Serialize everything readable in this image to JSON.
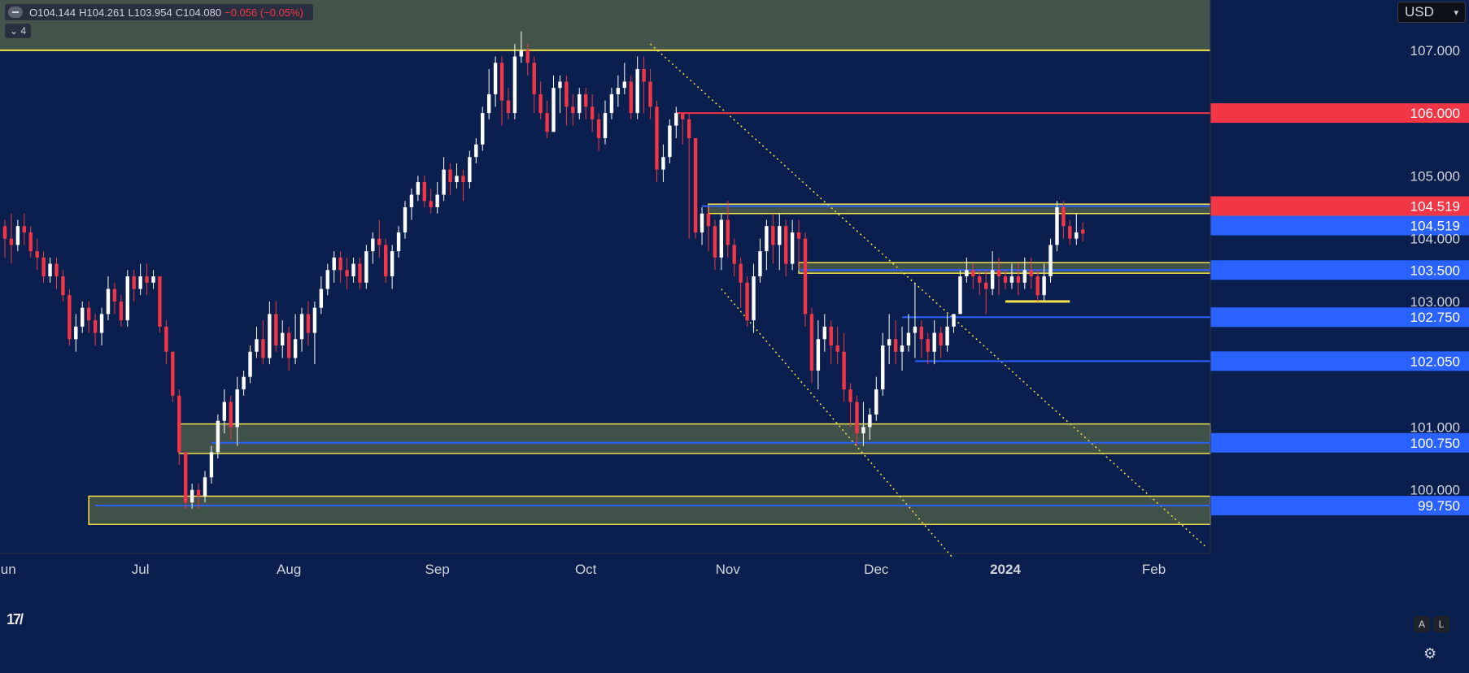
{
  "header": {
    "ohlc": {
      "o": "O104.144",
      "h": "H104.261",
      "l": "L103.954",
      "c": "C104.080",
      "change": "−0.056 (−0.05%)"
    },
    "indicators_label": "4",
    "currency": "USD"
  },
  "icons": {
    "collapse": "minus-circle-icon",
    "logo": "tradingview-logo",
    "settings": "gear-icon"
  },
  "axis_buttons": {
    "auto": "A",
    "log": "L"
  },
  "chart_data": {
    "type": "candlestick",
    "title": "",
    "xlabel": "",
    "ylabel": "",
    "ylim": [
      99.0,
      107.8
    ],
    "y_ticks": [
      {
        "value": 107.0,
        "label": "107.000"
      },
      {
        "value": 105.0,
        "label": "105.000"
      },
      {
        "value": 104.0,
        "label": "104.000"
      },
      {
        "value": 103.0,
        "label": "103.000"
      },
      {
        "value": 101.0,
        "label": "101.000"
      },
      {
        "value": 100.0,
        "label": "100.000"
      }
    ],
    "x_ticks": [
      "Jun",
      "Jul",
      "Aug",
      "Sep",
      "Oct",
      "Nov",
      "Dec",
      "2024",
      "Feb"
    ],
    "x_tick_index": [
      0,
      21,
      44,
      67,
      90,
      112,
      135,
      155,
      178
    ],
    "start_index": 0,
    "end_index": 186,
    "candles": [
      [
        0,
        104.2,
        104.0,
        104.3,
        103.7
      ],
      [
        1,
        104.0,
        103.9,
        104.4,
        103.6
      ],
      [
        2,
        103.9,
        104.2,
        104.3,
        103.8
      ],
      [
        3,
        104.2,
        104.1,
        104.4,
        103.9
      ],
      [
        4,
        104.1,
        103.8,
        104.2,
        103.7
      ],
      [
        5,
        103.8,
        103.7,
        104.0,
        103.5
      ],
      [
        6,
        103.7,
        103.4,
        103.8,
        103.3
      ],
      [
        7,
        103.4,
        103.6,
        103.7,
        103.3
      ],
      [
        8,
        103.6,
        103.4,
        103.7,
        103.2
      ],
      [
        9,
        103.4,
        103.1,
        103.5,
        103.0
      ],
      [
        10,
        103.1,
        102.4,
        103.2,
        102.3
      ],
      [
        11,
        102.4,
        102.6,
        102.8,
        102.2
      ],
      [
        12,
        102.6,
        102.9,
        103.0,
        102.5
      ],
      [
        13,
        102.9,
        102.7,
        103.0,
        102.5
      ],
      [
        14,
        102.7,
        102.5,
        102.8,
        102.3
      ],
      [
        15,
        102.5,
        102.8,
        102.9,
        102.3
      ],
      [
        16,
        102.8,
        103.2,
        103.4,
        102.7
      ],
      [
        17,
        103.2,
        103.0,
        103.3,
        102.8
      ],
      [
        18,
        103.0,
        102.7,
        103.1,
        102.6
      ],
      [
        19,
        102.7,
        103.4,
        103.5,
        102.6
      ],
      [
        20,
        103.4,
        103.2,
        103.5,
        103.0
      ],
      [
        21,
        103.2,
        103.4,
        103.6,
        103.1
      ],
      [
        22,
        103.4,
        103.3,
        103.6,
        103.1
      ],
      [
        23,
        103.3,
        103.4,
        103.5,
        103.2
      ],
      [
        24,
        103.4,
        102.6,
        103.4,
        102.5
      ],
      [
        25,
        102.6,
        102.2,
        102.7,
        102.0
      ],
      [
        26,
        102.2,
        101.5,
        102.2,
        101.4
      ],
      [
        27,
        101.5,
        100.6,
        101.6,
        100.4
      ],
      [
        28,
        100.6,
        99.8,
        100.6,
        99.7
      ],
      [
        29,
        99.8,
        100.0,
        100.1,
        99.7
      ],
      [
        30,
        100.0,
        99.9,
        100.1,
        99.7
      ],
      [
        31,
        99.9,
        100.2,
        100.3,
        99.8
      ],
      [
        32,
        100.2,
        100.6,
        100.7,
        100.1
      ],
      [
        33,
        100.6,
        101.1,
        101.2,
        100.5
      ],
      [
        34,
        101.1,
        101.4,
        101.6,
        100.9
      ],
      [
        35,
        101.4,
        101.0,
        101.5,
        100.8
      ],
      [
        36,
        101.0,
        101.6,
        101.8,
        100.7
      ],
      [
        37,
        101.6,
        101.8,
        101.9,
        101.5
      ],
      [
        38,
        101.8,
        102.2,
        102.3,
        101.7
      ],
      [
        39,
        102.2,
        102.4,
        102.6,
        102.1
      ],
      [
        40,
        102.4,
        102.1,
        102.7,
        102.0
      ],
      [
        41,
        102.1,
        102.8,
        103.0,
        102.0
      ],
      [
        42,
        102.8,
        102.3,
        103.0,
        102.2
      ],
      [
        43,
        102.3,
        102.5,
        102.7,
        102.1
      ],
      [
        44,
        102.5,
        102.1,
        102.6,
        101.9
      ],
      [
        45,
        102.1,
        102.4,
        102.8,
        102.0
      ],
      [
        46,
        102.4,
        102.8,
        102.9,
        102.2
      ],
      [
        47,
        102.8,
        102.5,
        103.0,
        102.3
      ],
      [
        48,
        102.5,
        102.9,
        103.0,
        102.0
      ],
      [
        49,
        102.9,
        103.2,
        103.4,
        102.8
      ],
      [
        50,
        103.2,
        103.5,
        103.6,
        103.1
      ],
      [
        51,
        103.5,
        103.7,
        103.8,
        103.3
      ],
      [
        52,
        103.7,
        103.5,
        103.8,
        103.3
      ],
      [
        53,
        103.5,
        103.4,
        103.7,
        103.2
      ],
      [
        54,
        103.4,
        103.6,
        103.7,
        103.3
      ],
      [
        55,
        103.6,
        103.3,
        103.7,
        103.2
      ],
      [
        56,
        103.3,
        103.8,
        103.9,
        103.2
      ],
      [
        57,
        103.8,
        104.0,
        104.1,
        103.6
      ],
      [
        58,
        104.0,
        103.9,
        104.3,
        103.7
      ],
      [
        59,
        103.9,
        103.4,
        104.0,
        103.3
      ],
      [
        60,
        103.4,
        103.8,
        103.9,
        103.2
      ],
      [
        61,
        103.8,
        104.1,
        104.2,
        103.7
      ],
      [
        62,
        104.1,
        104.5,
        104.6,
        104.0
      ],
      [
        63,
        104.5,
        104.7,
        104.8,
        104.3
      ],
      [
        64,
        104.7,
        104.9,
        105.0,
        104.6
      ],
      [
        65,
        104.9,
        104.6,
        105.0,
        104.5
      ],
      [
        66,
        104.6,
        104.5,
        104.8,
        104.4
      ],
      [
        67,
        104.5,
        104.7,
        104.9,
        104.4
      ],
      [
        68,
        104.7,
        105.1,
        105.3,
        104.6
      ],
      [
        69,
        105.1,
        104.9,
        105.2,
        104.7
      ],
      [
        70,
        104.9,
        105.0,
        105.2,
        104.8
      ],
      [
        71,
        105.0,
        104.9,
        105.1,
        104.6
      ],
      [
        72,
        104.9,
        105.3,
        105.4,
        104.8
      ],
      [
        73,
        105.3,
        105.5,
        105.6,
        105.2
      ],
      [
        74,
        105.5,
        106.0,
        106.1,
        105.4
      ],
      [
        75,
        106.0,
        106.3,
        106.7,
        105.9
      ],
      [
        76,
        106.3,
        106.8,
        106.9,
        106.1
      ],
      [
        77,
        106.8,
        106.2,
        106.9,
        105.8
      ],
      [
        78,
        106.2,
        106.0,
        106.4,
        105.9
      ],
      [
        79,
        106.0,
        106.9,
        107.1,
        105.9
      ],
      [
        80,
        106.9,
        107.0,
        107.3,
        106.8
      ],
      [
        81,
        107.0,
        106.8,
        107.1,
        106.6
      ],
      [
        82,
        106.8,
        106.3,
        106.9,
        106.0
      ],
      [
        83,
        106.3,
        106.0,
        106.5,
        105.9
      ],
      [
        84,
        106.0,
        105.7,
        106.2,
        105.6
      ],
      [
        85,
        105.7,
        106.4,
        106.6,
        105.7
      ],
      [
        86,
        106.4,
        106.5,
        106.6,
        106.0
      ],
      [
        87,
        106.5,
        106.1,
        106.6,
        105.8
      ],
      [
        88,
        106.1,
        106.0,
        106.3,
        105.8
      ],
      [
        89,
        106.0,
        106.3,
        106.4,
        105.9
      ],
      [
        90,
        106.3,
        106.1,
        106.4,
        105.9
      ],
      [
        91,
        106.1,
        105.9,
        106.3,
        105.7
      ],
      [
        92,
        105.9,
        105.6,
        106.0,
        105.4
      ],
      [
        93,
        105.6,
        106.0,
        106.2,
        105.5
      ],
      [
        94,
        106.0,
        106.3,
        106.4,
        105.9
      ],
      [
        95,
        106.3,
        106.4,
        106.6,
        106.1
      ],
      [
        96,
        106.4,
        106.5,
        106.8,
        106.3
      ],
      [
        97,
        106.5,
        106.0,
        106.6,
        105.9
      ],
      [
        98,
        106.0,
        106.7,
        106.9,
        105.9
      ],
      [
        99,
        106.7,
        106.5,
        106.9,
        106.0
      ],
      [
        100,
        106.5,
        106.1,
        106.7,
        105.9
      ],
      [
        101,
        106.1,
        105.1,
        106.2,
        104.9
      ],
      [
        102,
        105.1,
        105.3,
        105.5,
        104.9
      ],
      [
        103,
        105.3,
        105.8,
        105.9,
        105.2
      ],
      [
        104,
        105.8,
        106.0,
        106.1,
        105.6
      ],
      [
        105,
        106.0,
        105.9,
        106.0,
        105.5
      ],
      [
        106,
        105.9,
        105.6,
        106.0,
        104.0
      ],
      [
        107,
        105.6,
        104.1,
        105.6,
        104.0
      ],
      [
        108,
        104.1,
        104.4,
        104.5,
        103.9
      ],
      [
        109,
        104.4,
        104.2,
        104.5,
        103.8
      ],
      [
        110,
        104.2,
        103.7,
        104.3,
        103.5
      ],
      [
        111,
        103.7,
        104.3,
        104.4,
        103.5
      ],
      [
        112,
        104.3,
        103.9,
        104.6,
        103.7
      ],
      [
        113,
        103.9,
        103.6,
        104.0,
        103.4
      ],
      [
        114,
        103.6,
        103.3,
        103.7,
        102.9
      ],
      [
        115,
        103.3,
        102.7,
        103.4,
        102.6
      ],
      [
        116,
        102.7,
        103.4,
        103.6,
        102.5
      ],
      [
        117,
        103.4,
        103.8,
        104.0,
        103.3
      ],
      [
        118,
        103.8,
        104.2,
        104.3,
        103.5
      ],
      [
        119,
        104.2,
        103.9,
        104.4,
        103.6
      ],
      [
        120,
        103.9,
        104.2,
        104.4,
        103.5
      ],
      [
        121,
        104.2,
        103.6,
        104.3,
        103.4
      ],
      [
        122,
        103.6,
        104.1,
        104.3,
        103.5
      ],
      [
        123,
        104.1,
        104.0,
        104.3,
        103.5
      ],
      [
        124,
        104.0,
        102.8,
        104.1,
        102.6
      ],
      [
        125,
        102.8,
        101.9,
        102.9,
        101.7
      ],
      [
        126,
        101.9,
        102.4,
        102.7,
        101.6
      ],
      [
        127,
        102.4,
        102.6,
        102.8,
        102.2
      ],
      [
        128,
        102.6,
        102.3,
        102.7,
        102.0
      ],
      [
        129,
        102.3,
        102.2,
        102.6,
        102.0
      ],
      [
        130,
        102.2,
        101.6,
        102.5,
        101.4
      ],
      [
        131,
        101.6,
        101.4,
        101.7,
        101.0
      ],
      [
        132,
        101.4,
        100.9,
        101.5,
        100.7
      ],
      [
        133,
        100.9,
        101.0,
        101.4,
        100.7
      ],
      [
        134,
        101.0,
        101.2,
        101.3,
        100.8
      ],
      [
        135,
        101.2,
        101.6,
        101.8,
        101.1
      ],
      [
        136,
        101.6,
        102.3,
        102.5,
        101.5
      ],
      [
        137,
        102.3,
        102.4,
        102.8,
        102.0
      ],
      [
        138,
        102.4,
        102.2,
        102.7,
        102.0
      ],
      [
        139,
        102.2,
        102.3,
        102.6,
        101.9
      ],
      [
        140,
        102.3,
        102.5,
        102.8,
        102.2
      ],
      [
        141,
        102.5,
        102.6,
        103.3,
        102.1
      ],
      [
        142,
        102.6,
        102.4,
        102.7,
        102.1
      ],
      [
        143,
        102.4,
        102.2,
        102.5,
        102.0
      ],
      [
        144,
        102.2,
        102.5,
        102.7,
        102.0
      ],
      [
        145,
        102.5,
        102.3,
        102.6,
        102.1
      ],
      [
        146,
        102.3,
        102.6,
        102.8,
        102.2
      ],
      [
        147,
        102.6,
        102.8,
        102.8,
        102.5
      ],
      [
        148,
        102.8,
        103.4,
        103.5,
        102.8
      ],
      [
        149,
        103.4,
        103.5,
        103.7,
        103.3
      ],
      [
        150,
        103.5,
        103.4,
        103.6,
        103.2
      ],
      [
        151,
        103.4,
        103.3,
        103.5,
        103.1
      ],
      [
        152,
        103.3,
        103.2,
        103.5,
        102.8
      ],
      [
        153,
        103.2,
        103.5,
        103.8,
        103.1
      ],
      [
        154,
        103.5,
        103.4,
        103.7,
        103.1
      ],
      [
        155,
        103.4,
        103.3,
        103.5,
        103.2
      ],
      [
        156,
        103.3,
        103.4,
        103.6,
        103.2
      ],
      [
        157,
        103.4,
        103.3,
        103.6,
        103.1
      ],
      [
        158,
        103.3,
        103.5,
        103.7,
        103.2
      ],
      [
        159,
        103.5,
        103.4,
        103.7,
        103.2
      ],
      [
        160,
        103.4,
        103.1,
        103.5,
        103.0
      ],
      [
        161,
        103.1,
        103.4,
        103.6,
        103.0
      ],
      [
        162,
        103.4,
        103.9,
        104.0,
        103.3
      ],
      [
        163,
        103.9,
        104.5,
        104.6,
        103.8
      ],
      [
        164,
        104.5,
        104.2,
        104.6,
        104.0
      ],
      [
        165,
        104.2,
        104.0,
        104.3,
        103.9
      ],
      [
        166,
        104.0,
        104.1,
        104.4,
        103.9
      ],
      [
        167,
        104.144,
        104.08,
        104.261,
        103.954
      ]
    ],
    "levels": [
      {
        "value": 107.0,
        "label": "",
        "color": "#f2e04a",
        "style": "solid"
      },
      {
        "value": 106.0,
        "label": "106.000",
        "color": "#f23645",
        "style": "solid"
      },
      {
        "value": 104.519,
        "label": "104.519",
        "color": "#f23645",
        "style": "price"
      },
      {
        "value": 104.519,
        "label": "104.519",
        "color": "#2962ff",
        "style": "solid"
      },
      {
        "value": 103.5,
        "label": "103.500",
        "color": "#2962ff",
        "style": "solid"
      },
      {
        "value": 102.75,
        "label": "102.750",
        "color": "#2962ff",
        "style": "solid"
      },
      {
        "value": 102.05,
        "label": "102.050",
        "color": "#2962ff",
        "style": "solid"
      },
      {
        "value": 100.75,
        "label": "100.750",
        "color": "#2962ff",
        "style": "solid"
      },
      {
        "value": 99.75,
        "label": "99.750",
        "color": "#2962ff",
        "style": "solid"
      }
    ],
    "colors": {
      "up": "#ffffff",
      "down": "#f23645",
      "zone": "#4a5a4a",
      "zone_border": "#f2e04a",
      "background": "#0a1f4e"
    }
  }
}
